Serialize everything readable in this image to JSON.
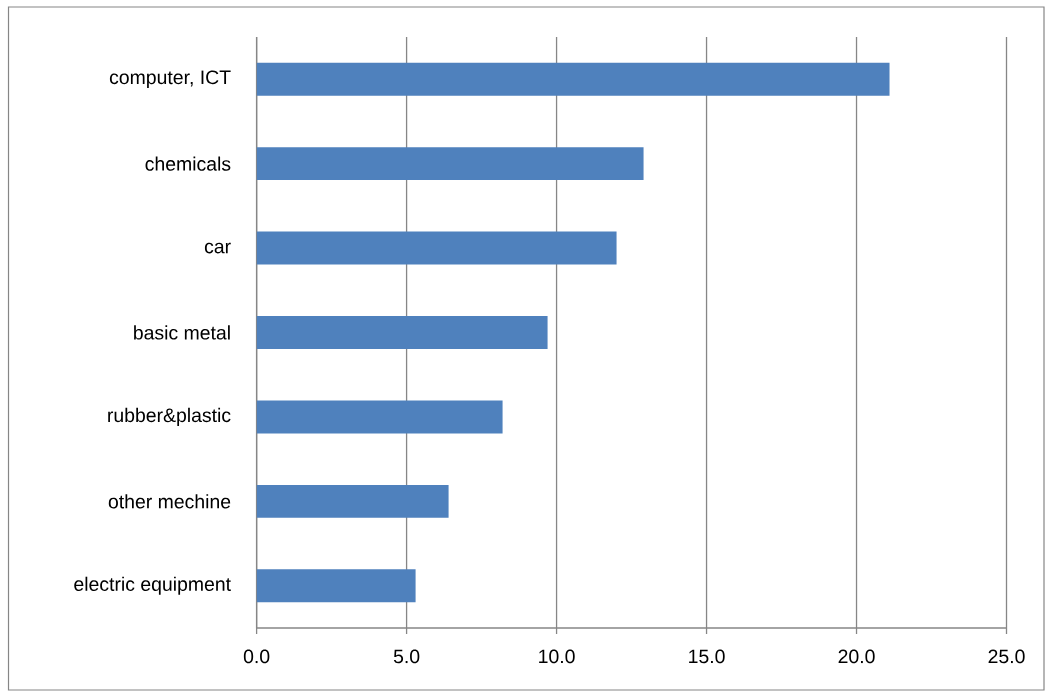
{
  "chart_data": {
    "type": "bar",
    "orientation": "horizontal",
    "categories": [
      "computer, ICT",
      "chemicals",
      "car",
      "basic metal",
      "rubber&plastic",
      "other mechine",
      "electric equipment"
    ],
    "values": [
      21.1,
      12.9,
      12.0,
      9.7,
      8.2,
      6.4,
      5.3
    ],
    "color": "#4f81bd",
    "xlim": [
      0,
      25
    ],
    "xticks": [
      {
        "value": 0,
        "label": "0.0"
      },
      {
        "value": 5,
        "label": "5.0"
      },
      {
        "value": 10,
        "label": "10.0"
      },
      {
        "value": 15,
        "label": "15.0"
      },
      {
        "value": 20,
        "label": "20.0"
      },
      {
        "value": 25,
        "label": "25.0"
      }
    ],
    "grid": "x"
  }
}
